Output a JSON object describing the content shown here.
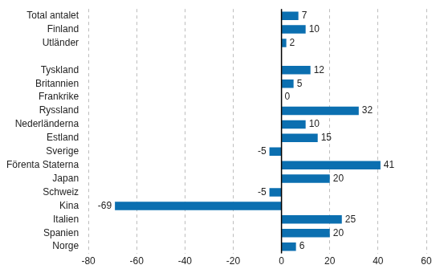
{
  "chart_data": {
    "type": "bar",
    "orientation": "horizontal",
    "categories": [
      "Total antalet",
      "Finland",
      "Utländer",
      null,
      "Tyskland",
      "Britannien",
      "Frankrike",
      "Ryssland",
      "Nederländerna",
      "Estland",
      "Sverige",
      "Förenta Staterna",
      "Japan",
      "Schweiz",
      "Kina",
      "Italien",
      "Spanien",
      "Norge"
    ],
    "values": [
      7,
      10,
      2,
      null,
      12,
      5,
      0,
      32,
      10,
      15,
      -5,
      41,
      20,
      -5,
      -69,
      25,
      20,
      6
    ],
    "color": "#0b6fb0",
    "xlim": [
      -80,
      60
    ],
    "xticks": [
      -80,
      -60,
      -40,
      -20,
      0,
      20,
      40,
      60
    ],
    "grid": true,
    "data_labels": true
  }
}
